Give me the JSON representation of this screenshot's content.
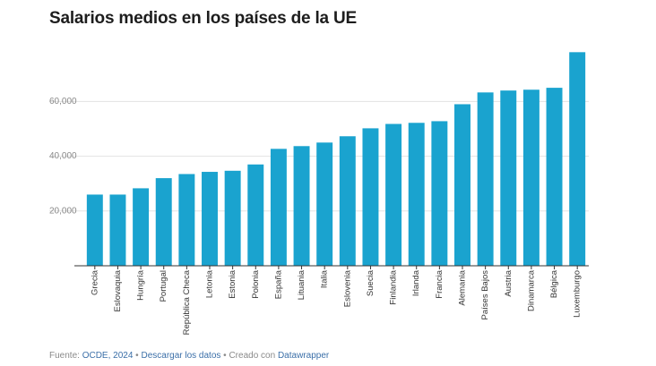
{
  "chart_data": {
    "type": "bar",
    "title": "Salarios medios en los países de la UE",
    "categories": [
      "Grecia",
      "Eslovaquia",
      "Hungría",
      "Portugal",
      "República Checa",
      "Letonia",
      "Estonia",
      "Polonia",
      "España",
      "Lituania",
      "Italia",
      "Eslovenia",
      "Suecia",
      "Finlandia",
      "Irlanda",
      "Francia",
      "Alemania",
      "Países Bajos",
      "Austria",
      "Dinamarca",
      "Bélgica",
      "Luxemburgo"
    ],
    "values": [
      26000,
      26000,
      28300,
      32000,
      33500,
      34300,
      34700,
      37000,
      42700,
      43700,
      45000,
      47300,
      50200,
      51800,
      52200,
      52800,
      59000,
      63300,
      64000,
      64300,
      65000,
      78000
    ],
    "yticks": [
      20000,
      40000,
      60000
    ],
    "ytick_labels": [
      "20,000",
      "40,000",
      "60,000"
    ],
    "ylim": [
      0,
      80000
    ],
    "grid": true,
    "bar_color": "#1aa3cf"
  },
  "footer": {
    "source_prefix": "Fuente: ",
    "source_link": "OCDE, 2024",
    "separator_1": " • ",
    "download_link": "Descargar los datos",
    "separator_2": " • Creado con ",
    "made_with_link": "Datawrapper"
  }
}
